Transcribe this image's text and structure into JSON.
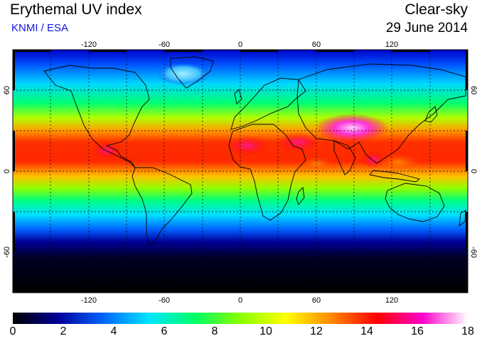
{
  "header": {
    "title": "Erythemal UV index",
    "credit": "KNMI / ESA",
    "condition": "Clear-sky",
    "date": "29 June 2014"
  },
  "map": {
    "projection": "equirectangular",
    "lon_range": [
      -180,
      180
    ],
    "lat_range": [
      -90,
      90
    ],
    "lon_ticks": [
      "-120",
      "-60",
      "0",
      "60",
      "120"
    ],
    "lat_ticks": [
      "60",
      "0",
      "-60"
    ],
    "gridlines": true,
    "variable": "Erythemal UV index",
    "peak_region": "Tibetan Plateau"
  },
  "colorbar": {
    "labels": [
      "0",
      "2",
      "4",
      "6",
      "8",
      "10",
      "12",
      "14",
      "16",
      "18"
    ],
    "range": [
      0,
      18
    ],
    "colors": [
      "#000000",
      "#000099",
      "#0066ff",
      "#00e6ff",
      "#00ff66",
      "#88ff00",
      "#ffff00",
      "#ff8800",
      "#ff0000",
      "#ff00cc",
      "#ffffff"
    ]
  }
}
